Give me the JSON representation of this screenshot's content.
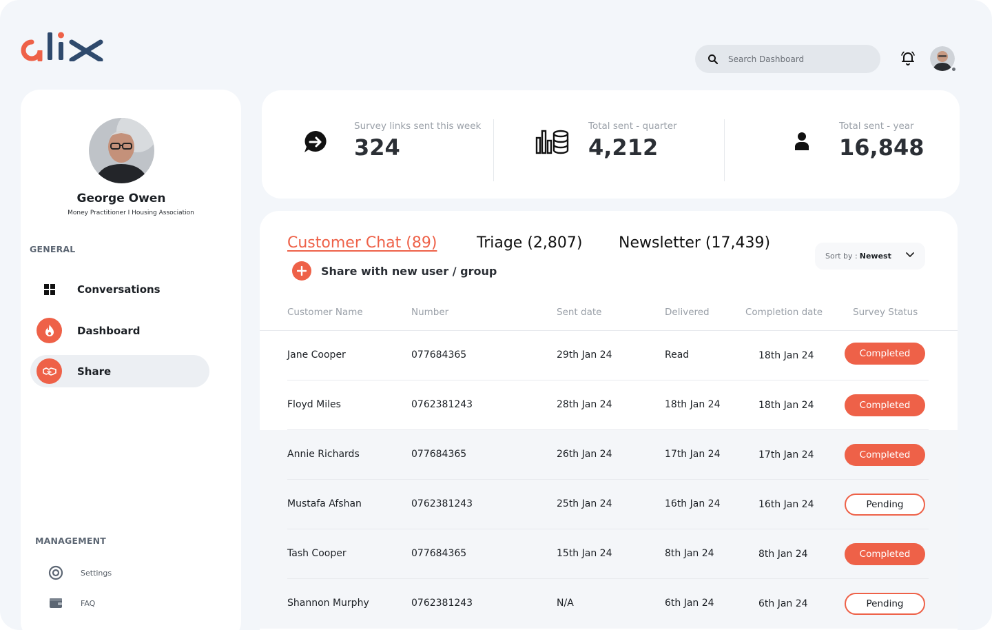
{
  "brand": {
    "name": "alix",
    "accent": "#ee6148",
    "dark": "#2f4a6d"
  },
  "header": {
    "search_placeholder": "Search Dashboard",
    "icons": [
      "search-icon",
      "bell-icon"
    ]
  },
  "profile": {
    "name": "George Owen",
    "role": "Money Practitioner I Housing Association"
  },
  "sidebar": {
    "general_label": "GENERAL",
    "items": [
      {
        "label": "Conversations",
        "icon": "grid-icon"
      },
      {
        "label": "Dashboard",
        "icon": "flame-icon"
      },
      {
        "label": "Share",
        "icon": "handshake-icon",
        "active": true
      }
    ],
    "management_label": "MANAGEMENT",
    "management_items": [
      {
        "label": "Settings",
        "icon": "target-icon"
      },
      {
        "label": "FAQ",
        "icon": "wallet-icon"
      }
    ]
  },
  "stats": [
    {
      "label": "Survey links sent this week",
      "value": "324",
      "icon": "chat-arrow-icon"
    },
    {
      "label": "Total sent - quarter",
      "value": "4,212",
      "icon": "bars-coins-icon"
    },
    {
      "label": "Total sent - year",
      "value": "16,848",
      "icon": "person-icon"
    }
  ],
  "tabs": [
    {
      "label": "Customer Chat (89)",
      "active": true
    },
    {
      "label": "Triage (2,807)"
    },
    {
      "label": "Newsletter (17,439)"
    }
  ],
  "share_action": "Share with new user / group",
  "sort": {
    "label": "Sort by :",
    "value": "Newest"
  },
  "table": {
    "columns": [
      "Customer Name",
      "Number",
      "Sent date",
      "Delivered",
      "Completion date",
      "Survey Status"
    ],
    "rows": [
      {
        "name": "Jane Cooper",
        "number": "077684365",
        "sent": "29th Jan 24",
        "delivered": "Read",
        "completion": "18th Jan 24",
        "status": "Completed"
      },
      {
        "name": "Floyd Miles",
        "number": "0762381243",
        "sent": "28th Jan 24",
        "delivered": "18th Jan 24",
        "completion": "18th Jan 24",
        "status": "Completed"
      },
      {
        "name": "Annie Richards",
        "number": "077684365",
        "sent": "26th Jan 24",
        "delivered": "17th Jan 24",
        "completion": "17th Jan 24",
        "status": "Completed"
      },
      {
        "name": "Mustafa Afshan",
        "number": "0762381243",
        "sent": "25th Jan 24",
        "delivered": "16th Jan 24",
        "completion": "16th Jan 24",
        "status": "Pending"
      },
      {
        "name": "Tash Cooper",
        "number": "077684365",
        "sent": "15th Jan 24",
        "delivered": "8th Jan 24",
        "completion": "8th Jan 24",
        "status": "Completed"
      },
      {
        "name": "Shannon Murphy",
        "number": "0762381243",
        "sent": "N/A",
        "delivered": "6th Jan 24",
        "completion": "6th Jan 24",
        "status": "Pending"
      }
    ]
  }
}
